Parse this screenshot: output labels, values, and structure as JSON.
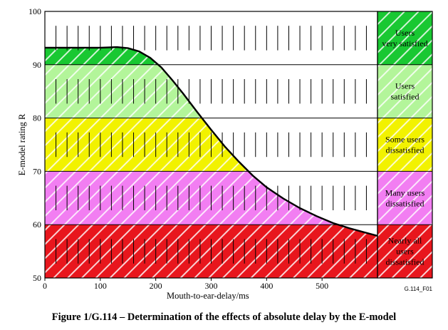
{
  "figure": {
    "id_label": "G.114_F01",
    "caption": "Figure 1/G.114 – Determination of the effects of absolute delay by the E-model"
  },
  "chart_data": {
    "type": "area",
    "title": "",
    "xlabel": "Mouth-to-ear-delay/ms",
    "ylabel": "E-model rating R",
    "xlim": [
      0,
      600
    ],
    "ylim": [
      50,
      100
    ],
    "xticks": [
      0,
      100,
      200,
      300,
      400,
      500
    ],
    "yticks": [
      50,
      60,
      70,
      80,
      90,
      100
    ],
    "grid": true,
    "hatched_minor_ticks_ms": 20,
    "zones": [
      {
        "name": "Users very satisfied",
        "lines": [
          "Users",
          "very satisfied"
        ],
        "range": [
          90,
          100
        ],
        "color": "#19c832"
      },
      {
        "name": "Users satisfied",
        "lines": [
          "Users",
          "satisfied"
        ],
        "range": [
          80,
          90
        ],
        "color": "#b3f59a"
      },
      {
        "name": "Some users dissatisfied",
        "lines": [
          "Some users",
          "dissatisfied"
        ],
        "range": [
          70,
          80
        ],
        "color": "#f2f200"
      },
      {
        "name": "Many users dissatisfied",
        "lines": [
          "Many users",
          "dissatisfied"
        ],
        "range": [
          60,
          70
        ],
        "color": "#f27ef2"
      },
      {
        "name": "Nearly all users dissatisfied",
        "lines": [
          "Nearly all",
          "users",
          "dissatisfied"
        ],
        "range": [
          50,
          60
        ],
        "color": "#e8161d"
      }
    ],
    "series": [
      {
        "x": [
          0,
          50,
          100,
          130,
          150,
          170,
          190,
          210,
          230,
          250,
          275,
          300,
          325,
          350,
          375,
          400,
          430,
          460,
          490,
          520,
          550,
          600
        ],
        "y": [
          93.2,
          93.2,
          93.2,
          93.3,
          93.1,
          92.5,
          91.3,
          89.5,
          87.1,
          84.5,
          81.1,
          77.8,
          74.6,
          71.8,
          69.2,
          67.0,
          64.9,
          63.1,
          61.6,
          60.3,
          59.3,
          57.9
        ]
      }
    ]
  }
}
